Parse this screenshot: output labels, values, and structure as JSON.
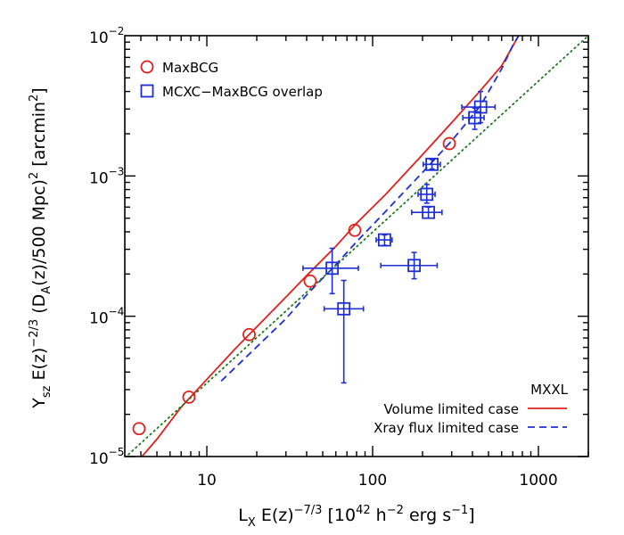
{
  "chart_data": {
    "type": "scatter",
    "x_scale": "log",
    "y_scale": "log",
    "xlim": [
      3.2,
      2000
    ],
    "ylim": [
      1e-05,
      0.01
    ],
    "grid": false,
    "xlabel": {
      "base": "L",
      "sub": "X",
      "mid": " E(z)",
      "sup": "−7/3",
      "unit_open": " [10",
      "unit_sup1": "42",
      "unit_mid": " h",
      "unit_sup2": "−2",
      "unit_mid2": " erg s",
      "unit_sup3": "−1",
      "unit_close": "]"
    },
    "ylabel": {
      "base": "Y",
      "sub": "sz",
      "mid": " E(z)",
      "sup": "−2/3",
      "p2": "  (D",
      "sub2": "A",
      "p3": "(z)/500 Mpc)",
      "sup2": "2",
      "p4": " [arcmin",
      "sup3": "2",
      "p5": "]"
    },
    "x_ticks": [
      {
        "value": 10,
        "label": "10"
      },
      {
        "value": 100,
        "label": "100"
      },
      {
        "value": 1000,
        "label": "1000"
      }
    ],
    "y_ticks": [
      {
        "value": 1e-05,
        "base": "10",
        "exp": "−5"
      },
      {
        "value": 0.0001,
        "base": "10",
        "exp": "−4"
      },
      {
        "value": 0.001,
        "base": "10",
        "exp": "−3"
      },
      {
        "value": 0.01,
        "base": "10",
        "exp": "−2"
      }
    ],
    "legend_top": {
      "placement": "top-left",
      "entries": [
        {
          "label": "MaxBCG",
          "marker": "circle",
          "color": "#e0201c"
        },
        {
          "label": "MCXC−MaxBCG overlap",
          "marker": "square",
          "color": "#1e2fd6"
        }
      ]
    },
    "legend_bottom": {
      "placement": "bottom-right",
      "title": "MXXL",
      "entries": [
        {
          "label": "Volume limited  case",
          "style": "solid",
          "color": "#e0201c"
        },
        {
          "label": "Xray flux limited case",
          "style": "dashed",
          "color": "#1e2fd6"
        }
      ]
    },
    "series": [
      {
        "name": "MaxBCG",
        "kind": "points",
        "marker": "circle",
        "color": "#e0201c",
        "points": [
          {
            "x": 3.9,
            "y": 1.58e-05
          },
          {
            "x": 7.8,
            "y": 2.65e-05
          },
          {
            "x": 18,
            "y": 7.4e-05
          },
          {
            "x": 42,
            "y": 0.000178
          },
          {
            "x": 78,
            "y": 0.00041
          },
          {
            "x": 290,
            "y": 0.0017
          }
        ]
      },
      {
        "name": "MCXC−MaxBCG overlap",
        "kind": "points",
        "marker": "square",
        "color": "#1e2fd6",
        "points": [
          {
            "x": 57,
            "y": 0.00022,
            "xlo": 38,
            "xhi": 82,
            "ylo": 0.000145,
            "yhi": 0.000305
          },
          {
            "x": 67,
            "y": 0.000113,
            "xlo": 51,
            "xhi": 88,
            "ylo": 3.35e-05,
            "yhi": 0.00018
          },
          {
            "x": 118,
            "y": 0.00035,
            "xlo": 105,
            "xhi": 131,
            "ylo": 0.00032,
            "yhi": 0.00038
          },
          {
            "x": 178,
            "y": 0.00023,
            "xlo": 112,
            "xhi": 245,
            "ylo": 0.000185,
            "yhi": 0.000285
          },
          {
            "x": 212,
            "y": 0.00074,
            "xlo": 188,
            "xhi": 238,
            "ylo": 0.00064,
            "yhi": 0.00087
          },
          {
            "x": 217,
            "y": 0.00055,
            "xlo": 172,
            "xhi": 262,
            "ylo": 0.0005,
            "yhi": 0.0006
          },
          {
            "x": 228,
            "y": 0.00121,
            "xlo": 202,
            "xhi": 256,
            "ylo": 0.00112,
            "yhi": 0.00131
          },
          {
            "x": 413,
            "y": 0.0026,
            "xlo": 350,
            "xhi": 470,
            "ylo": 0.00215,
            "yhi": 0.00305
          },
          {
            "x": 448,
            "y": 0.0031,
            "xlo": 345,
            "xhi": 548,
            "ylo": 0.0024,
            "yhi": 0.004
          }
        ]
      },
      {
        "name": "Volume limited  case",
        "kind": "line",
        "style": "solid",
        "color": "#e0201c",
        "points": [
          {
            "x": 3.7,
            "y": 8.8e-06
          },
          {
            "x": 5,
            "y": 1.33e-05
          },
          {
            "x": 7,
            "y": 2.25e-05
          },
          {
            "x": 10,
            "y": 3.55e-05
          },
          {
            "x": 15,
            "y": 5.95e-05
          },
          {
            "x": 20,
            "y": 8.4e-05
          },
          {
            "x": 30,
            "y": 0.000137
          },
          {
            "x": 40,
            "y": 0.000195
          },
          {
            "x": 60,
            "y": 0.000315
          },
          {
            "x": 80,
            "y": 0.00046
          },
          {
            "x": 120,
            "y": 0.00074
          },
          {
            "x": 200,
            "y": 0.00142
          },
          {
            "x": 300,
            "y": 0.0024
          },
          {
            "x": 450,
            "y": 0.0041
          },
          {
            "x": 600,
            "y": 0.0061
          },
          {
            "x": 760,
            "y": 0.01
          }
        ]
      },
      {
        "name": "Xray flux limited case",
        "kind": "line",
        "style": "dashed",
        "color": "#1e2fd6",
        "points": [
          {
            "x": 12.2,
            "y": 3.45e-05
          },
          {
            "x": 20,
            "y": 6.05e-05
          },
          {
            "x": 30,
            "y": 9.6e-05
          },
          {
            "x": 40,
            "y": 0.000142
          },
          {
            "x": 60,
            "y": 0.000233
          },
          {
            "x": 80,
            "y": 0.00034
          },
          {
            "x": 120,
            "y": 0.00056
          },
          {
            "x": 200,
            "y": 0.00106
          },
          {
            "x": 300,
            "y": 0.00178
          },
          {
            "x": 450,
            "y": 0.0032
          },
          {
            "x": 600,
            "y": 0.0058
          },
          {
            "x": 700,
            "y": 0.0085
          },
          {
            "x": 760,
            "y": 0.01
          }
        ]
      },
      {
        "name": "",
        "kind": "line",
        "style": "dotted",
        "color": "#1f7a1f",
        "points": [
          {
            "x": 3.2,
            "y": 9.8e-06
          },
          {
            "x": 2000,
            "y": 0.01
          }
        ]
      }
    ]
  }
}
